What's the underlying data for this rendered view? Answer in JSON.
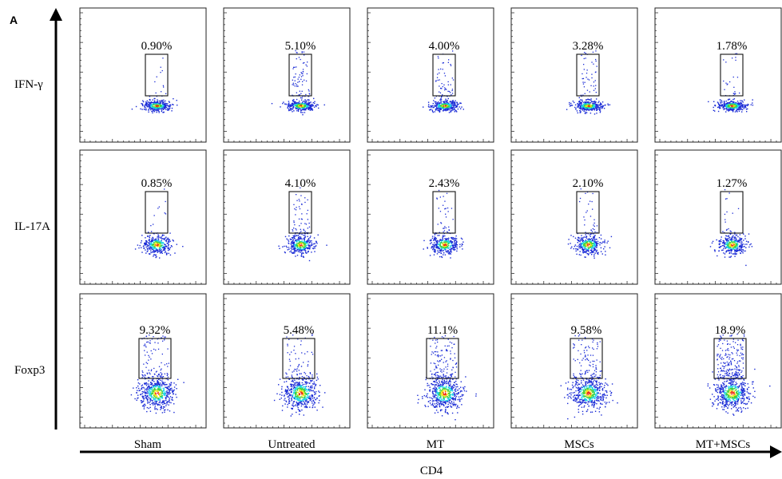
{
  "figure": {
    "panel_letter": "A",
    "y_axis_label": "",
    "x_axis_label": "CD4"
  },
  "chart_data": {
    "type": "scatter",
    "description_kind": "flow-cytometry-grid",
    "rows": [
      "IFN-γ",
      "IL-17A",
      "Foxp3"
    ],
    "columns": [
      "Sham",
      "Untreated",
      "MT",
      "MSCs",
      "MT+MSCs"
    ],
    "gate_percentages": [
      [
        "0.90%",
        "5.10%",
        "4.00%",
        "3.28%",
        "1.78%"
      ],
      [
        "0.85%",
        "4.10%",
        "2.43%",
        "2.10%",
        "1.27%"
      ],
      [
        "9.32%",
        "5.48%",
        "11.1%",
        "9.58%",
        "18.9%"
      ]
    ],
    "gate_values": [
      [
        0.9,
        5.1,
        4.0,
        3.28,
        1.78
      ],
      [
        0.85,
        4.1,
        2.43,
        2.1,
        1.27
      ],
      [
        9.32,
        5.48,
        11.1,
        9.58,
        18.9
      ]
    ],
    "xlabel": "CD4",
    "ylabel": "",
    "grid": false,
    "colors": {
      "low": "#1a2bd6",
      "mid1": "#19d4e6",
      "mid2": "#3fd23a",
      "mid3": "#f2e51c",
      "high": "#ee2416",
      "frame": "#222222"
    }
  }
}
